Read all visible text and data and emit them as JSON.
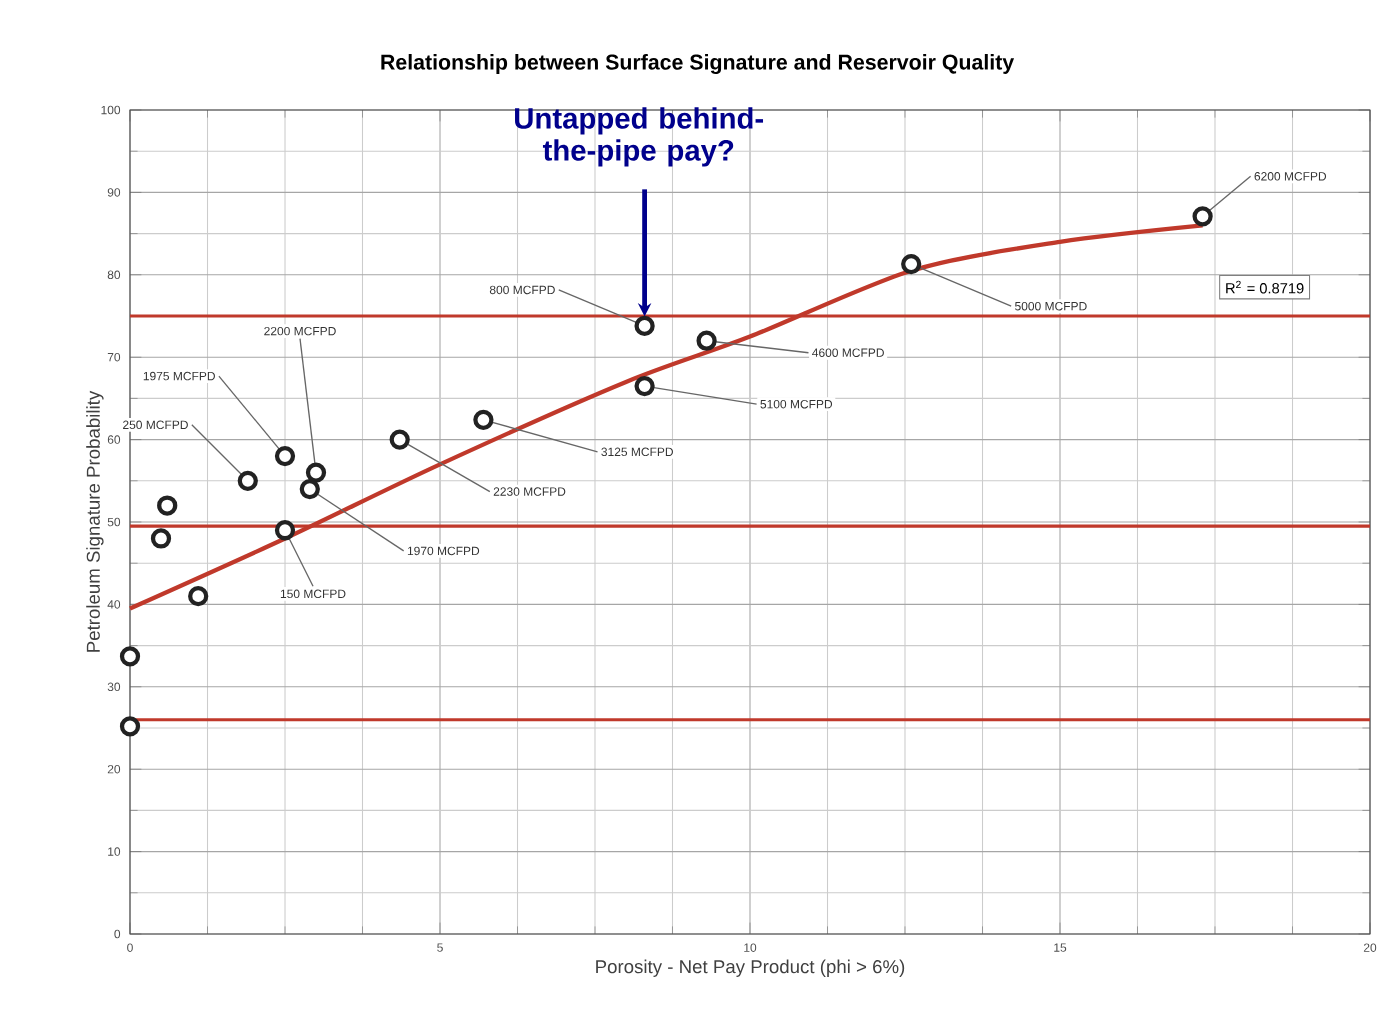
{
  "chart_data": {
    "type": "scatter",
    "title": "Relationship between Surface Signature and Reservoir Quality",
    "xlabel": "Porosity - Net Pay Product (phi > 6%)",
    "ylabel": "Petroleum Signature Probability",
    "xlim": [
      0,
      20
    ],
    "ylim": [
      0,
      100
    ],
    "xticks": [
      0,
      5,
      10,
      15,
      20
    ],
    "yticks": [
      0,
      10,
      20,
      30,
      40,
      50,
      60,
      70,
      80,
      90,
      100
    ],
    "grid": true,
    "series": [
      {
        "type": "scatter",
        "marker": "circle",
        "color": "#222222",
        "x": [
          0,
          0,
          0.5,
          0.6,
          1.1,
          1.9,
          2.5,
          2.5,
          3.0,
          2.9,
          4.35,
          5.7,
          8.3,
          8.3,
          9.3,
          12.6,
          17.3
        ],
        "values": [
          33.7,
          25.2,
          48,
          52,
          41,
          55,
          58,
          49,
          56,
          54,
          60,
          62.4,
          66.5,
          73.8,
          72,
          81.3,
          87.1
        ]
      },
      {
        "type": "line",
        "color": "#c0392b",
        "x": [
          0,
          2.5,
          5,
          8,
          10,
          12.6,
          15,
          17.3
        ],
        "values": [
          39.5,
          48,
          57,
          67,
          72.5,
          80.5,
          84,
          86
        ]
      }
    ],
    "ref_lines": [
      {
        "axis": "y",
        "value": 75,
        "color": "#c0392b"
      },
      {
        "axis": "y",
        "value": 49.5,
        "color": "#c0392b"
      },
      {
        "axis": "y",
        "value": 26,
        "color": "#c0392b"
      }
    ],
    "annotations": [
      {
        "text": "250 MCFPD",
        "x": 1.9,
        "y": 55
      },
      {
        "text": "1975 MCFPD",
        "x": 2.5,
        "y": 58
      },
      {
        "text": "2200 MCFPD",
        "x": 3.0,
        "y": 56
      },
      {
        "text": "150 MCFPD",
        "x": 2.5,
        "y": 49
      },
      {
        "text": "1970 MCFPD",
        "x": 2.9,
        "y": 54
      },
      {
        "text": "2230 MCFPD",
        "x": 4.35,
        "y": 60
      },
      {
        "text": "3125 MCFPD",
        "x": 5.7,
        "y": 62.4
      },
      {
        "text": "800 MCFPD",
        "x": 8.3,
        "y": 73.8
      },
      {
        "text": "5100 MCFPD",
        "x": 8.3,
        "y": 66.5
      },
      {
        "text": "4600 MCFPD",
        "x": 9.3,
        "y": 72
      },
      {
        "text": "5000 MCFPD",
        "x": 12.6,
        "y": 81.3
      },
      {
        "text": "6200 MCFPD",
        "x": 17.3,
        "y": 87.1
      },
      {
        "text": "Untapped behind-the-pipe pay?",
        "x": 8.3,
        "y": 73.8
      },
      "R$^{2}$ = 0.8719"
    ]
  }
}
